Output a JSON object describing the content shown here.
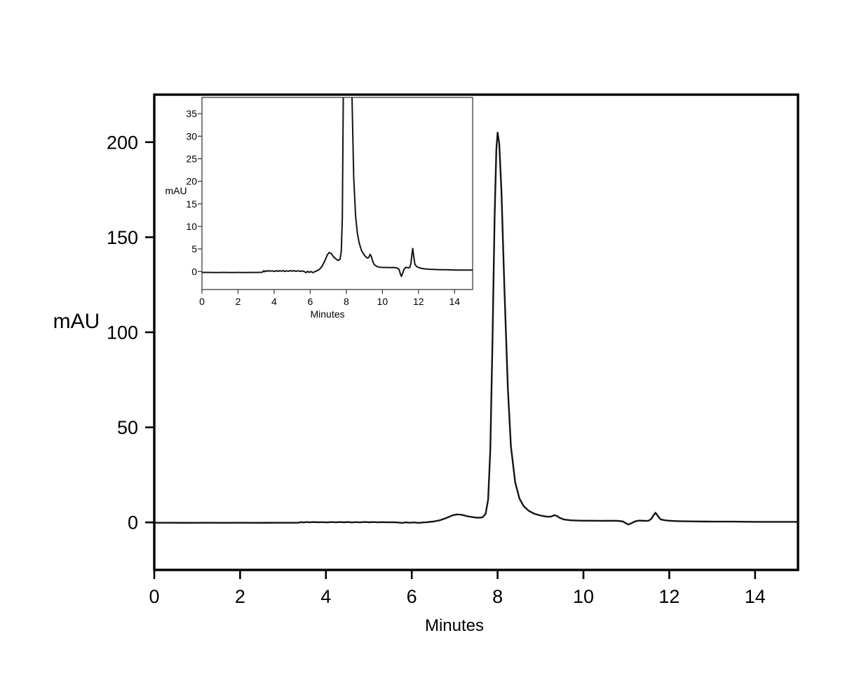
{
  "figure": {
    "background_color": "#ffffff",
    "frame_color": "#000000",
    "inset_frame_color": "#4a4a4a",
    "trace_color": "#141414"
  },
  "chart_data": {
    "type": "line",
    "title": "",
    "description": "HPLC chromatogram: detector response (mAU) vs retention time (Minutes), main plot with zoomed inset of the same trace",
    "series": [
      {
        "name": "chromatogram-trace",
        "color": "#141414",
        "points": [
          [
            0,
            -0.2
          ],
          [
            0.4,
            -0.2
          ],
          [
            0.8,
            -0.22
          ],
          [
            1.2,
            -0.2
          ],
          [
            1.6,
            -0.22
          ],
          [
            2,
            -0.2
          ],
          [
            2.4,
            -0.22
          ],
          [
            2.8,
            -0.2
          ],
          [
            3.1,
            -0.2
          ],
          [
            3.35,
            -0.18
          ],
          [
            3.42,
            0.15
          ],
          [
            3.48,
            -0.05
          ],
          [
            3.55,
            0.18
          ],
          [
            3.62,
            0.05
          ],
          [
            3.72,
            0.18
          ],
          [
            3.82,
            0.08
          ],
          [
            3.92,
            0.15
          ],
          [
            4.02,
            0
          ],
          [
            4.12,
            0.18
          ],
          [
            4.22,
            0.05
          ],
          [
            4.32,
            0.18
          ],
          [
            4.42,
            0.08
          ],
          [
            4.52,
            0.18
          ],
          [
            4.6,
            0
          ],
          [
            4.7,
            0.15
          ],
          [
            4.8,
            0.05
          ],
          [
            4.9,
            0.22
          ],
          [
            5,
            0.08
          ],
          [
            5.1,
            0.18
          ],
          [
            5.2,
            0.05
          ],
          [
            5.32,
            0.15
          ],
          [
            5.45,
            0.05
          ],
          [
            5.58,
            0.1
          ],
          [
            5.68,
            -0.05
          ],
          [
            5.78,
            -0.25
          ],
          [
            5.86,
            0.05
          ],
          [
            5.95,
            -0.2
          ],
          [
            6.05,
            0
          ],
          [
            6.15,
            -0.25
          ],
          [
            6.25,
            -0.05
          ],
          [
            6.35,
            0.1
          ],
          [
            6.5,
            0.45
          ],
          [
            6.65,
            1.1
          ],
          [
            6.8,
            2.3
          ],
          [
            6.95,
            3.7
          ],
          [
            7.05,
            4.2
          ],
          [
            7.15,
            4.05
          ],
          [
            7.3,
            3.2
          ],
          [
            7.45,
            2.7
          ],
          [
            7.55,
            2.45
          ],
          [
            7.65,
            2.7
          ],
          [
            7.72,
            4.5
          ],
          [
            7.78,
            12
          ],
          [
            7.83,
            38
          ],
          [
            7.88,
            95
          ],
          [
            7.93,
            160
          ],
          [
            7.97,
            196
          ],
          [
            8,
            205
          ],
          [
            8.04,
            199
          ],
          [
            8.09,
            174
          ],
          [
            8.16,
            122
          ],
          [
            8.24,
            70
          ],
          [
            8.31,
            40
          ],
          [
            8.41,
            21
          ],
          [
            8.51,
            12.5
          ],
          [
            8.61,
            8.5
          ],
          [
            8.72,
            6.2
          ],
          [
            8.85,
            4.6
          ],
          [
            9,
            3.6
          ],
          [
            9.15,
            3
          ],
          [
            9.25,
            3.1
          ],
          [
            9.32,
            3.8
          ],
          [
            9.38,
            3.4
          ],
          [
            9.45,
            2.4
          ],
          [
            9.55,
            1.5
          ],
          [
            9.7,
            1.1
          ],
          [
            9.85,
            0.95
          ],
          [
            10,
            0.9
          ],
          [
            10.2,
            0.9
          ],
          [
            10.4,
            0.85
          ],
          [
            10.6,
            0.9
          ],
          [
            10.8,
            0.8
          ],
          [
            10.92,
            0.5
          ],
          [
            11,
            -0.6
          ],
          [
            11.05,
            -1.1
          ],
          [
            11.12,
            -0.4
          ],
          [
            11.2,
            0.5
          ],
          [
            11.3,
            0.95
          ],
          [
            11.42,
            0.8
          ],
          [
            11.52,
            0.9
          ],
          [
            11.58,
            1.8
          ],
          [
            11.63,
            3.6
          ],
          [
            11.68,
            5.1
          ],
          [
            11.74,
            3.2
          ],
          [
            11.8,
            1.6
          ],
          [
            11.9,
            1.1
          ],
          [
            12,
            0.9
          ],
          [
            12.15,
            0.7
          ],
          [
            12.3,
            0.6
          ],
          [
            12.6,
            0.5
          ],
          [
            12.9,
            0.45
          ],
          [
            13.2,
            0.4
          ],
          [
            13.5,
            0.4
          ],
          [
            13.8,
            0.35
          ],
          [
            14.1,
            0.3
          ],
          [
            14.4,
            0.3
          ],
          [
            14.7,
            0.3
          ],
          [
            15,
            0.3
          ]
        ]
      }
    ],
    "main_plot": {
      "xlabel": "Minutes",
      "ylabel": "mAU",
      "xlim": [
        0,
        15
      ],
      "ylim": [
        -25,
        225
      ],
      "xticks": [
        0,
        2,
        4,
        6,
        8,
        10,
        12,
        14
      ],
      "yticks": [
        0,
        50,
        100,
        150,
        200
      ],
      "grid": false,
      "legend": "none",
      "peak_annotations": {
        "main_peak_minutes": 8.0,
        "main_peak_mau": 205,
        "minor_peaks_minutes": [
          7.05,
          9.32,
          11.68
        ],
        "minor_peaks_mau": [
          4.2,
          3.8,
          5.1
        ]
      }
    },
    "inset_plot": {
      "xlabel": "Minutes",
      "ylabel": "mAU",
      "xlim": [
        0,
        15
      ],
      "ylim": [
        -4,
        38.6
      ],
      "xticks": [
        0,
        2,
        4,
        6,
        8,
        10,
        12,
        14
      ],
      "yticks": [
        0,
        5,
        10,
        15,
        20,
        25,
        30,
        35
      ],
      "grid": false,
      "legend": "none",
      "note": "same trace as main plot, y-axis zoomed; 8-minute peak clipped at top"
    }
  }
}
